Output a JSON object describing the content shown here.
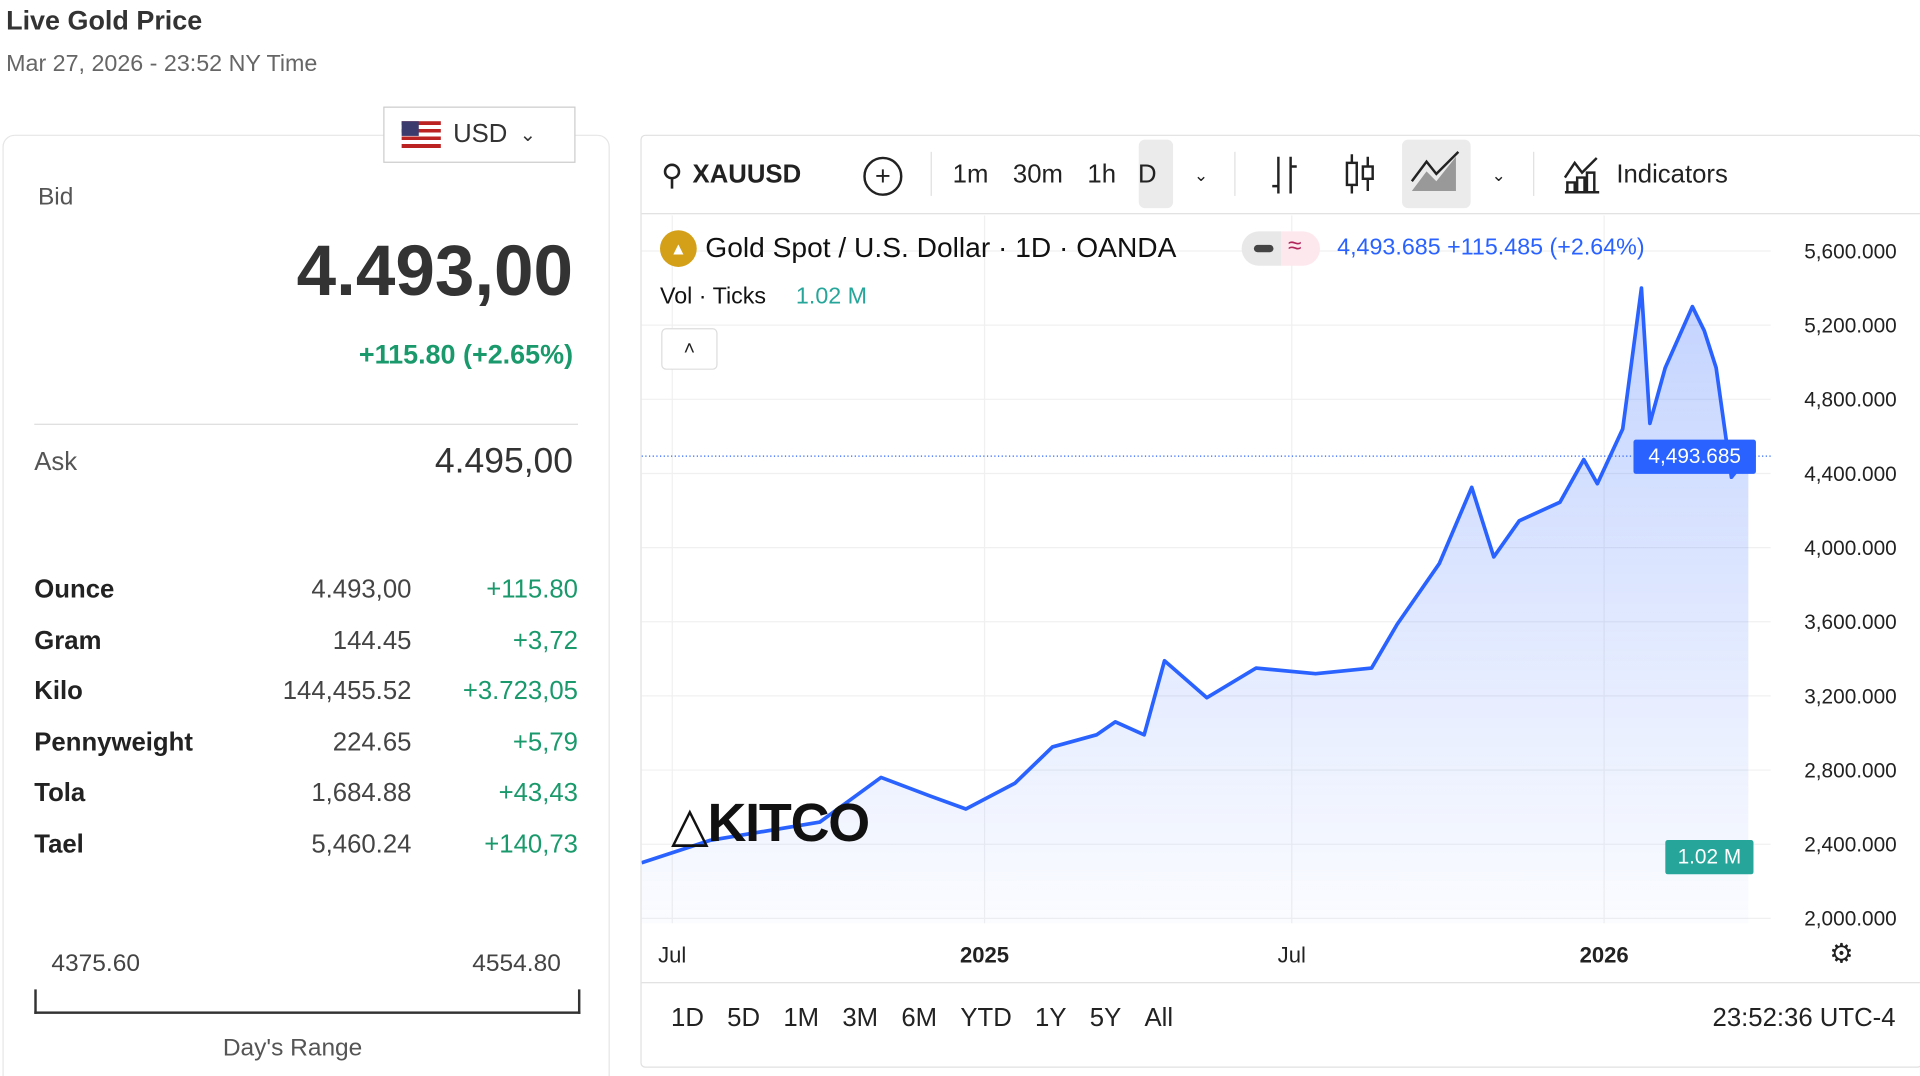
{
  "header": {
    "title": "Live Gold Price",
    "subtitle": "Mar 27, 2026 - 23:52 NY Time"
  },
  "currency": {
    "selected": "USD",
    "icon": "us-flag-icon"
  },
  "quote": {
    "bid_label": "Bid",
    "bid": "4.493,00",
    "change": "+115.80 (+2.65%)",
    "ask_label": "Ask",
    "ask": "4.495,00"
  },
  "units": [
    {
      "name": "Ounce",
      "value": "4.493,00",
      "change": "+115.80"
    },
    {
      "name": "Gram",
      "value": "144.45",
      "change": "+3,72"
    },
    {
      "name": "Kilo",
      "value": "144,455.52",
      "change": "+3.723,05"
    },
    {
      "name": "Pennyweight",
      "value": "224.65",
      "change": "+5,79"
    },
    {
      "name": "Tola",
      "value": "1,684.88",
      "change": "+43,43"
    },
    {
      "name": "Tael",
      "value": "5,460.24",
      "change": "+140,73"
    }
  ],
  "range": {
    "low": "4375.60",
    "high": "4554.80",
    "label": "Day's Range"
  },
  "toolbar": {
    "symbol": "XAUUSD",
    "intervals": [
      "1m",
      "30m",
      "1h",
      "D"
    ],
    "active_interval": "D",
    "indicators": "Indicators"
  },
  "legend": {
    "name": "Gold Spot / U.S. Dollar · 1D · OANDA",
    "values": "4,493.685 +115.485 (+2.64%)",
    "vol_label": "Vol · Ticks",
    "vol_value": "1.02 M"
  },
  "ranges": [
    "1D",
    "5D",
    "1M",
    "3M",
    "6M",
    "YTD",
    "1Y",
    "5Y",
    "All"
  ],
  "clock": "23:52:36 UTC-4",
  "logo": "KITCO",
  "colors": {
    "line": "#2962ff",
    "up": "#1a9a6c",
    "last_price_bg": "#2962ff",
    "vol_badge": "#26a69a"
  },
  "chart_data": {
    "type": "area",
    "x_ticks": [
      {
        "date": "2024-07-01",
        "label": "Jul"
      },
      {
        "date": "2025-01-01",
        "label": "2025"
      },
      {
        "date": "2025-07-01",
        "label": "Jul"
      },
      {
        "date": "2026-01-01",
        "label": "2026"
      }
    ],
    "y_ticks": [
      "5,600.000",
      "5,200.000",
      "4,800.000",
      "4,400.000",
      "4,000.000",
      "3,600.000",
      "3,200.000",
      "2,800.000",
      "2,400.000",
      "2,000.000"
    ],
    "y_tick_values": [
      5600,
      5200,
      4800,
      4400,
      4000,
      3600,
      3200,
      2800,
      2400,
      2000
    ],
    "ylim": [
      2000,
      5600
    ],
    "last_price": "4,493.685",
    "last_value": 4493.685,
    "grid": true,
    "points": [
      [
        "2024-06-13",
        2300
      ],
      [
        "2024-07-23",
        2420
      ],
      [
        "2024-09-26",
        2520
      ],
      [
        "2024-11-01",
        2760
      ],
      [
        "2024-11-30",
        2660
      ],
      [
        "2024-12-21",
        2590
      ],
      [
        "2025-01-19",
        2730
      ],
      [
        "2025-02-10",
        2925
      ],
      [
        "2025-03-08",
        2990
      ],
      [
        "2025-03-19",
        3060
      ],
      [
        "2025-04-05",
        2990
      ],
      [
        "2025-04-17",
        3390
      ],
      [
        "2025-05-12",
        3190
      ],
      [
        "2025-06-10",
        3350
      ],
      [
        "2025-07-15",
        3320
      ],
      [
        "2025-08-17",
        3350
      ],
      [
        "2025-09-01",
        3585
      ],
      [
        "2025-09-26",
        3915
      ],
      [
        "2025-10-15",
        4325
      ],
      [
        "2025-10-28",
        3950
      ],
      [
        "2025-11-12",
        4145
      ],
      [
        "2025-12-06",
        4245
      ],
      [
        "2025-12-20",
        4475
      ],
      [
        "2025-12-28",
        4345
      ],
      [
        "2026-01-12",
        4640
      ],
      [
        "2026-01-23",
        5400
      ],
      [
        "2026-01-28",
        4670
      ],
      [
        "2026-02-06",
        4970
      ],
      [
        "2026-02-22",
        5300
      ],
      [
        "2026-03-01",
        5170
      ],
      [
        "2026-03-08",
        4970
      ],
      [
        "2026-03-17",
        4380
      ],
      [
        "2026-03-27",
        4493.685
      ]
    ]
  }
}
